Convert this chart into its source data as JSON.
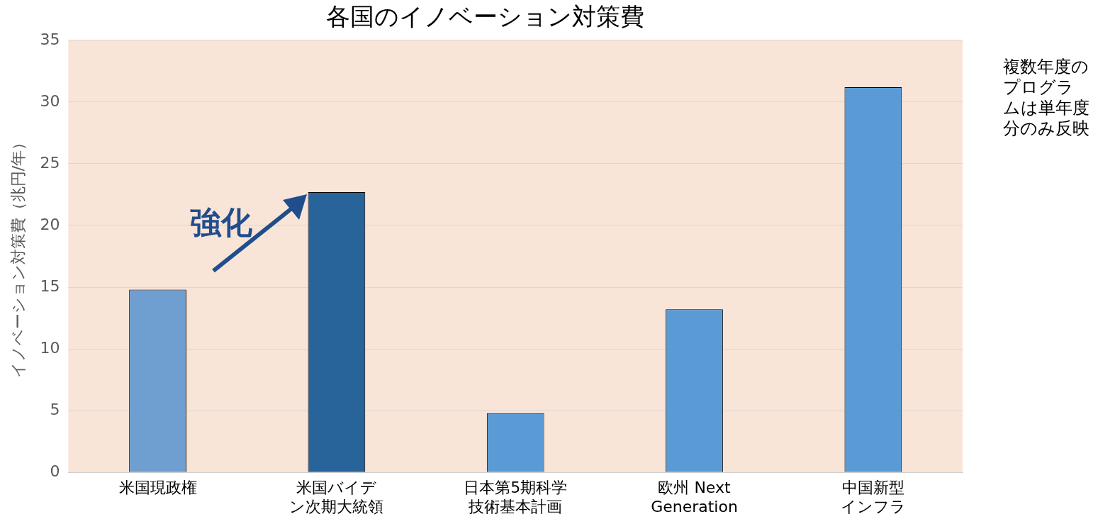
{
  "chart_data": {
    "type": "bar",
    "title": "各国のイノベーション対策費",
    "ylabel": "イノベーション対策費（兆円/年）",
    "categories": [
      "米国現政権",
      "米国バイデン次期大統領",
      "日本第5期科学技術基本計画",
      "欧州 Next Generation",
      "中国新型インフラ"
    ],
    "values": [
      14.8,
      22.7,
      4.8,
      13.2,
      31.2
    ],
    "colors": [
      "#6e9fd0",
      "#28649a",
      "#5b9bd5",
      "#5b9bd5",
      "#5b9bd5"
    ],
    "ylim": [
      0,
      35
    ],
    "yticks": [
      0,
      5,
      10,
      15,
      20,
      25,
      30,
      35
    ],
    "grid": "y",
    "annotations": [
      "強化",
      "複数年度のプログラムは単年度分のみ反映"
    ]
  }
}
